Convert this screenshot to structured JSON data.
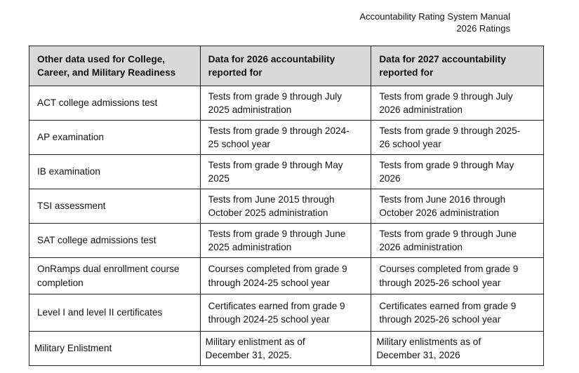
{
  "header": {
    "title": "Accountability Rating System Manual",
    "subtitle": "2026 Ratings"
  },
  "table": {
    "columns": [
      [
        "Other data used for College,",
        "Career, and Military Readiness"
      ],
      [
        "Data for 2026 accountability",
        "reported for"
      ],
      [
        "Data for 2027 accountability",
        "reported for"
      ]
    ],
    "rows": [
      [
        [
          "ACT college admissions test"
        ],
        [
          "Tests from grade 9 through July",
          "2025 administration"
        ],
        [
          "Tests from grade 9 through July",
          "2026 administration"
        ]
      ],
      [
        [
          "AP examination"
        ],
        [
          "Tests from grade 9 through 2024-",
          "25 school year"
        ],
        [
          "Tests from grade 9 through 2025-",
          "26 school year"
        ]
      ],
      [
        [
          "IB examination"
        ],
        [
          "Tests from grade 9 through May",
          "2025"
        ],
        [
          "Tests from grade 9 through May",
          "2026"
        ]
      ],
      [
        [
          "TSI assessment"
        ],
        [
          "Tests from June 2015 through",
          "October 2025 administration"
        ],
        [
          "Tests from June 2016 through",
          "October 2026 administration"
        ]
      ],
      [
        [
          "SAT college admissions test"
        ],
        [
          "Tests from grade 9 through June",
          "2025 administration"
        ],
        [
          "Tests from grade 9 through June",
          "2026 administration"
        ]
      ],
      [
        [
          "OnRamps dual enrollment course",
          "completion"
        ],
        [
          "Courses completed from grade 9",
          "through 2024-25 school year"
        ],
        [
          "Courses completed from grade 9",
          "through 2025-26 school year"
        ]
      ],
      [
        [
          "Level I and level II certificates"
        ],
        [
          "Certificates earned from grade 9",
          "through 2024-25 school year"
        ],
        [
          "Certificates earned from grade 9",
          "through 2025-26 school year"
        ]
      ],
      [
        [
          "Military Enlistment"
        ],
        [
          "Military enlistment as of",
          "December 31, 2025."
        ],
        [
          "Military enlistments as of",
          "December 31, 2026"
        ]
      ]
    ]
  }
}
